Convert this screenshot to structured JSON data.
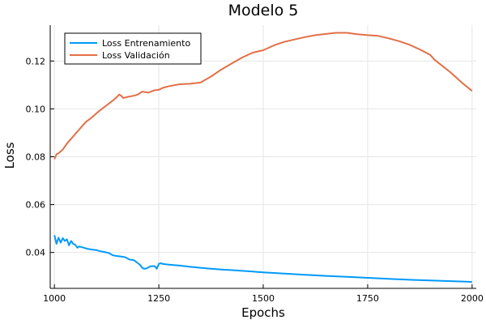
{
  "chart_data": {
    "type": "line",
    "title": "Modelo 5",
    "xlabel": "Epochs",
    "ylabel": "Loss",
    "xlim": [
      990,
      2010
    ],
    "ylim": [
      0.025,
      0.135
    ],
    "xticks": [
      1000,
      1250,
      1500,
      1750,
      2000
    ],
    "yticks": [
      0.04,
      0.06,
      0.08,
      0.1,
      0.12
    ],
    "xtick_labels": [
      "1000",
      "1250",
      "1500",
      "1750",
      "2000"
    ],
    "ytick_labels": [
      "0.04",
      "0.06",
      "0.08",
      "0.10",
      "0.12"
    ],
    "grid": true,
    "legend_position": "top-left",
    "series": [
      {
        "name": "Loss Entrenamiento",
        "color": "#009af9",
        "x": [
          1000,
          1005,
          1010,
          1015,
          1020,
          1025,
          1030,
          1035,
          1040,
          1045,
          1050,
          1055,
          1060,
          1070,
          1080,
          1090,
          1100,
          1110,
          1120,
          1130,
          1140,
          1150,
          1160,
          1170,
          1180,
          1190,
          1200,
          1205,
          1210,
          1215,
          1220,
          1230,
          1240,
          1245,
          1250,
          1255,
          1260,
          1270,
          1280,
          1300,
          1325,
          1350,
          1375,
          1400,
          1425,
          1450,
          1475,
          1500,
          1550,
          1600,
          1650,
          1700,
          1750,
          1800,
          1850,
          1900,
          1950,
          2000
        ],
        "values": [
          0.0472,
          0.0436,
          0.0462,
          0.0441,
          0.046,
          0.0448,
          0.0455,
          0.043,
          0.0448,
          0.0436,
          0.0432,
          0.042,
          0.0425,
          0.042,
          0.0415,
          0.0412,
          0.041,
          0.0405,
          0.0402,
          0.0398,
          0.0388,
          0.0385,
          0.0383,
          0.038,
          0.037,
          0.0368,
          0.0355,
          0.0348,
          0.0336,
          0.0332,
          0.0333,
          0.0342,
          0.0343,
          0.0332,
          0.0353,
          0.0355,
          0.0352,
          0.035,
          0.0348,
          0.0345,
          0.034,
          0.0336,
          0.0332,
          0.0329,
          0.0326,
          0.0323,
          0.032,
          0.0317,
          0.0312,
          0.0307,
          0.0302,
          0.0298,
          0.0294,
          0.029,
          0.0286,
          0.0283,
          0.028,
          0.0277
        ]
      },
      {
        "name": "Loss Validación",
        "color": "#e26f46",
        "x": [
          1000,
          1005,
          1010,
          1020,
          1030,
          1040,
          1050,
          1060,
          1075,
          1090,
          1100,
          1110,
          1125,
          1140,
          1150,
          1155,
          1160,
          1165,
          1175,
          1190,
          1200,
          1210,
          1225,
          1240,
          1250,
          1260,
          1275,
          1300,
          1325,
          1350,
          1375,
          1400,
          1425,
          1450,
          1475,
          1500,
          1525,
          1550,
          1575,
          1600,
          1625,
          1650,
          1675,
          1700,
          1725,
          1750,
          1775,
          1800,
          1825,
          1850,
          1875,
          1900,
          1910,
          1925,
          1950,
          1975,
          2000
        ],
        "values": [
          0.079,
          0.081,
          0.0815,
          0.083,
          0.0855,
          0.0875,
          0.0895,
          0.0915,
          0.0945,
          0.0965,
          0.098,
          0.0995,
          0.1015,
          0.1035,
          0.105,
          0.106,
          0.1055,
          0.1045,
          0.105,
          0.1055,
          0.106,
          0.1072,
          0.1068,
          0.1078,
          0.108,
          0.1088,
          0.1095,
          0.1103,
          0.1105,
          0.111,
          0.1135,
          0.1165,
          0.119,
          0.1215,
          0.1235,
          0.1245,
          0.1265,
          0.128,
          0.129,
          0.13,
          0.1308,
          0.1313,
          0.1318,
          0.1318,
          0.1312,
          0.1308,
          0.1305,
          0.1295,
          0.1283,
          0.1268,
          0.1248,
          0.1225,
          0.1205,
          0.1185,
          0.115,
          0.111,
          0.1075
        ]
      }
    ]
  }
}
